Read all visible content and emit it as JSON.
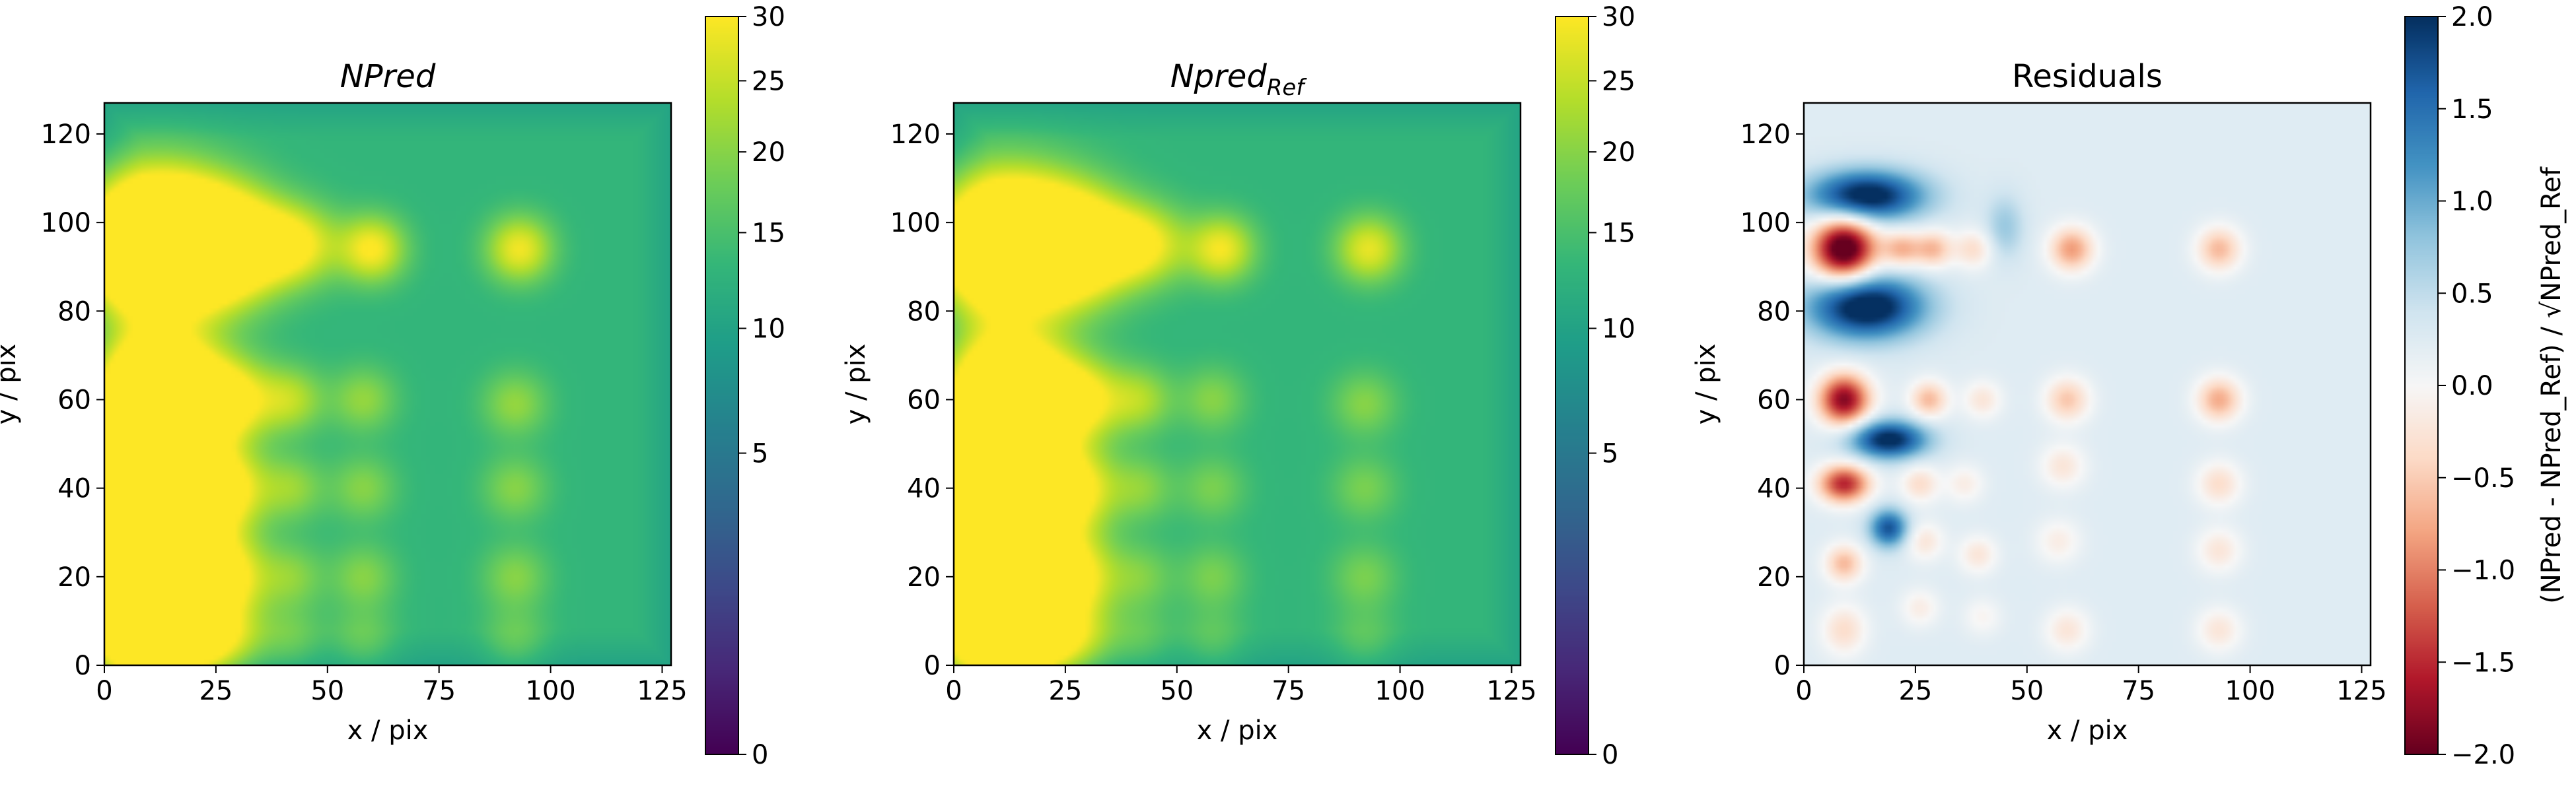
{
  "chart_data": [
    {
      "type": "heatmap",
      "title": "NPred",
      "title_italic": true,
      "xlabel": "x / pix",
      "ylabel": "y / pix",
      "xlim": [
        0,
        127
      ],
      "ylim": [
        0,
        127
      ],
      "x_ticks": [
        0,
        25,
        50,
        75,
        100,
        125
      ],
      "y_ticks": [
        0,
        20,
        40,
        60,
        80,
        100,
        120
      ],
      "colormap": "viridis",
      "colorbar": {
        "scale": "sqrt",
        "range": [
          0,
          30
        ],
        "ticks": [
          0,
          5,
          10,
          15,
          20,
          25,
          30
        ],
        "label": ""
      },
      "background_value": 13,
      "blobs": [
        {
          "x": 12,
          "y": 95,
          "sx": 11,
          "sy": 10,
          "amp": 60
        },
        {
          "x": 28,
          "y": 95,
          "sx": 8,
          "sy": 8,
          "amp": 25
        },
        {
          "x": 42,
          "y": 95,
          "sx": 7,
          "sy": 6,
          "amp": 18
        },
        {
          "x": 60,
          "y": 94,
          "sx": 5,
          "sy": 5,
          "amp": 17
        },
        {
          "x": 93,
          "y": 94,
          "sx": 5,
          "sy": 5,
          "amp": 16
        },
        {
          "x": 12,
          "y": 60,
          "sx": 9,
          "sy": 9,
          "amp": 55
        },
        {
          "x": 28,
          "y": 60,
          "sx": 7,
          "sy": 6,
          "amp": 18
        },
        {
          "x": 42,
          "y": 60,
          "sx": 5,
          "sy": 5,
          "amp": 10
        },
        {
          "x": 58,
          "y": 60,
          "sx": 5,
          "sy": 5,
          "amp": 8
        },
        {
          "x": 92,
          "y": 59,
          "sx": 5,
          "sy": 5,
          "amp": 8
        },
        {
          "x": 12,
          "y": 40,
          "sx": 9,
          "sy": 8,
          "amp": 50
        },
        {
          "x": 28,
          "y": 40,
          "sx": 6,
          "sy": 6,
          "amp": 14
        },
        {
          "x": 42,
          "y": 40,
          "sx": 5,
          "sy": 5,
          "amp": 8
        },
        {
          "x": 58,
          "y": 40,
          "sx": 5,
          "sy": 5,
          "amp": 7
        },
        {
          "x": 92,
          "y": 40,
          "sx": 5,
          "sy": 5,
          "amp": 7
        },
        {
          "x": 12,
          "y": 20,
          "sx": 10,
          "sy": 10,
          "amp": 50
        },
        {
          "x": 28,
          "y": 20,
          "sx": 6,
          "sy": 6,
          "amp": 12
        },
        {
          "x": 42,
          "y": 20,
          "sx": 5,
          "sy": 5,
          "amp": 7
        },
        {
          "x": 58,
          "y": 20,
          "sx": 5,
          "sy": 5,
          "amp": 7
        },
        {
          "x": 92,
          "y": 20,
          "sx": 5,
          "sy": 5,
          "amp": 7
        },
        {
          "x": 12,
          "y": 5,
          "sx": 9,
          "sy": 6,
          "amp": 35
        },
        {
          "x": 28,
          "y": 6,
          "sx": 6,
          "sy": 5,
          "amp": 8
        },
        {
          "x": 42,
          "y": 6,
          "sx": 5,
          "sy": 5,
          "amp": 5
        },
        {
          "x": 58,
          "y": 6,
          "sx": 5,
          "sy": 5,
          "amp": 5
        },
        {
          "x": 92,
          "y": 6,
          "sx": 5,
          "sy": 5,
          "amp": 5
        }
      ]
    },
    {
      "type": "heatmap",
      "title": "Npred",
      "title_subscript": "Ref",
      "title_italic": true,
      "xlabel": "x / pix",
      "ylabel": "y / pix",
      "xlim": [
        0,
        127
      ],
      "ylim": [
        0,
        127
      ],
      "x_ticks": [
        0,
        25,
        50,
        75,
        100,
        125
      ],
      "y_ticks": [
        0,
        20,
        40,
        60,
        80,
        100,
        120
      ],
      "colormap": "viridis",
      "colorbar": {
        "scale": "sqrt",
        "range": [
          0,
          30
        ],
        "ticks": [
          0,
          5,
          10,
          15,
          20,
          25,
          30
        ],
        "label": ""
      },
      "background_value": 13,
      "blobs": [
        {
          "x": 12,
          "y": 95,
          "sx": 11,
          "sy": 10,
          "amp": 50
        },
        {
          "x": 28,
          "y": 95,
          "sx": 8,
          "sy": 8,
          "amp": 24
        },
        {
          "x": 42,
          "y": 95,
          "sx": 7,
          "sy": 6,
          "amp": 17
        },
        {
          "x": 60,
          "y": 94,
          "sx": 5,
          "sy": 5,
          "amp": 16
        },
        {
          "x": 93,
          "y": 94,
          "sx": 5,
          "sy": 5,
          "amp": 15
        },
        {
          "x": 12,
          "y": 60,
          "sx": 9,
          "sy": 9,
          "amp": 50
        },
        {
          "x": 28,
          "y": 60,
          "sx": 7,
          "sy": 6,
          "amp": 17
        },
        {
          "x": 42,
          "y": 60,
          "sx": 5,
          "sy": 5,
          "amp": 9
        },
        {
          "x": 58,
          "y": 60,
          "sx": 5,
          "sy": 5,
          "amp": 7
        },
        {
          "x": 92,
          "y": 59,
          "sx": 5,
          "sy": 5,
          "amp": 7
        },
        {
          "x": 12,
          "y": 40,
          "sx": 9,
          "sy": 8,
          "amp": 46
        },
        {
          "x": 28,
          "y": 40,
          "sx": 6,
          "sy": 6,
          "amp": 13
        },
        {
          "x": 42,
          "y": 40,
          "sx": 5,
          "sy": 5,
          "amp": 7
        },
        {
          "x": 58,
          "y": 40,
          "sx": 5,
          "sy": 5,
          "amp": 6
        },
        {
          "x": 92,
          "y": 40,
          "sx": 5,
          "sy": 5,
          "amp": 6
        },
        {
          "x": 12,
          "y": 20,
          "sx": 10,
          "sy": 10,
          "amp": 48
        },
        {
          "x": 28,
          "y": 20,
          "sx": 6,
          "sy": 6,
          "amp": 11
        },
        {
          "x": 42,
          "y": 20,
          "sx": 5,
          "sy": 5,
          "amp": 6
        },
        {
          "x": 58,
          "y": 20,
          "sx": 5,
          "sy": 5,
          "amp": 6
        },
        {
          "x": 92,
          "y": 20,
          "sx": 5,
          "sy": 5,
          "amp": 6
        },
        {
          "x": 12,
          "y": 5,
          "sx": 9,
          "sy": 6,
          "amp": 33
        },
        {
          "x": 28,
          "y": 6,
          "sx": 6,
          "sy": 5,
          "amp": 7
        },
        {
          "x": 42,
          "y": 6,
          "sx": 5,
          "sy": 5,
          "amp": 4
        },
        {
          "x": 58,
          "y": 6,
          "sx": 5,
          "sy": 5,
          "amp": 4
        },
        {
          "x": 92,
          "y": 6,
          "sx": 5,
          "sy": 5,
          "amp": 4
        }
      ]
    },
    {
      "type": "heatmap",
      "title": "Residuals",
      "title_italic": false,
      "xlabel": "x / pix",
      "ylabel": "y / pix",
      "xlim": [
        0,
        127
      ],
      "ylim": [
        0,
        127
      ],
      "x_ticks": [
        0,
        25,
        50,
        75,
        100,
        125
      ],
      "y_ticks": [
        0,
        20,
        40,
        60,
        80,
        100,
        120
      ],
      "colormap": "RdBu",
      "colorbar": {
        "scale": "linear",
        "range": [
          -2.0,
          2.0
        ],
        "ticks": [
          -2.0,
          -1.5,
          -1.0,
          -0.5,
          0.0,
          0.5,
          1.0,
          1.5,
          2.0
        ],
        "tick_labels": [
          "−2.0",
          "−1.5",
          "−1.0",
          "−0.5",
          "0.0",
          "0.5",
          "1.0",
          "1.5",
          "2.0"
        ],
        "label": "(NPred - NPred_Ref) / √NPred_Ref"
      },
      "background_value": 0.25,
      "background_note_hidden": true,
      "blobs": [
        {
          "x": 9,
          "y": 94,
          "sx": 5,
          "sy": 5,
          "amp": -2.6
        },
        {
          "x": 14,
          "y": 106,
          "sx": 9,
          "sy": 4,
          "amp": 2.0
        },
        {
          "x": 14,
          "y": 81,
          "sx": 9,
          "sy": 5,
          "amp": 2.1
        },
        {
          "x": 22,
          "y": 94,
          "sx": 3,
          "sy": 3,
          "amp": -0.9
        },
        {
          "x": 29,
          "y": 94,
          "sx": 3,
          "sy": 3,
          "amp": -0.9
        },
        {
          "x": 38,
          "y": 94,
          "sx": 3,
          "sy": 3,
          "amp": -0.6
        },
        {
          "x": 45,
          "y": 99,
          "sx": 3,
          "sy": 5,
          "amp": 0.5
        },
        {
          "x": 60,
          "y": 94,
          "sx": 3.5,
          "sy": 3.5,
          "amp": -1.1
        },
        {
          "x": 93,
          "y": 94,
          "sx": 3.5,
          "sy": 3.5,
          "amp": -0.9
        },
        {
          "x": 9,
          "y": 60,
          "sx": 4,
          "sy": 4,
          "amp": -2.1
        },
        {
          "x": 19,
          "y": 51,
          "sx": 6,
          "sy": 3,
          "amp": 1.9
        },
        {
          "x": 28,
          "y": 60,
          "sx": 3,
          "sy": 3,
          "amp": -0.9
        },
        {
          "x": 40,
          "y": 60,
          "sx": 3,
          "sy": 3,
          "amp": -0.5
        },
        {
          "x": 59,
          "y": 60,
          "sx": 3.5,
          "sy": 3.5,
          "amp": -0.8
        },
        {
          "x": 93,
          "y": 60,
          "sx": 3.5,
          "sy": 3.5,
          "amp": -1.0
        },
        {
          "x": 9,
          "y": 41,
          "sx": 4,
          "sy": 3,
          "amp": -1.8
        },
        {
          "x": 19,
          "y": 31,
          "sx": 3,
          "sy": 3,
          "amp": 1.5
        },
        {
          "x": 26,
          "y": 41,
          "sx": 3,
          "sy": 3,
          "amp": -0.6
        },
        {
          "x": 36,
          "y": 41,
          "sx": 3,
          "sy": 3,
          "amp": -0.4
        },
        {
          "x": 58,
          "y": 45,
          "sx": 3.5,
          "sy": 3.5,
          "amp": -0.5
        },
        {
          "x": 93,
          "y": 41,
          "sx": 3.5,
          "sy": 3.5,
          "amp": -0.6
        },
        {
          "x": 9,
          "y": 23,
          "sx": 3,
          "sy": 3,
          "amp": -0.9
        },
        {
          "x": 27,
          "y": 28,
          "sx": 3,
          "sy": 3,
          "amp": -0.5
        },
        {
          "x": 39,
          "y": 25,
          "sx": 3,
          "sy": 3,
          "amp": -0.5
        },
        {
          "x": 57,
          "y": 28,
          "sx": 3.5,
          "sy": 3.5,
          "amp": -0.4
        },
        {
          "x": 93,
          "y": 26,
          "sx": 3.5,
          "sy": 3.5,
          "amp": -0.5
        },
        {
          "x": 9,
          "y": 8,
          "sx": 3.5,
          "sy": 4,
          "amp": -0.6
        },
        {
          "x": 26,
          "y": 13,
          "sx": 3,
          "sy": 3,
          "amp": -0.4
        },
        {
          "x": 40,
          "y": 11,
          "sx": 3,
          "sy": 3,
          "amp": -0.3
        },
        {
          "x": 59,
          "y": 8,
          "sx": 3.5,
          "sy": 3.5,
          "amp": -0.5
        },
        {
          "x": 93,
          "y": 8,
          "sx": 3.5,
          "sy": 3.5,
          "amp": -0.5
        }
      ]
    }
  ]
}
